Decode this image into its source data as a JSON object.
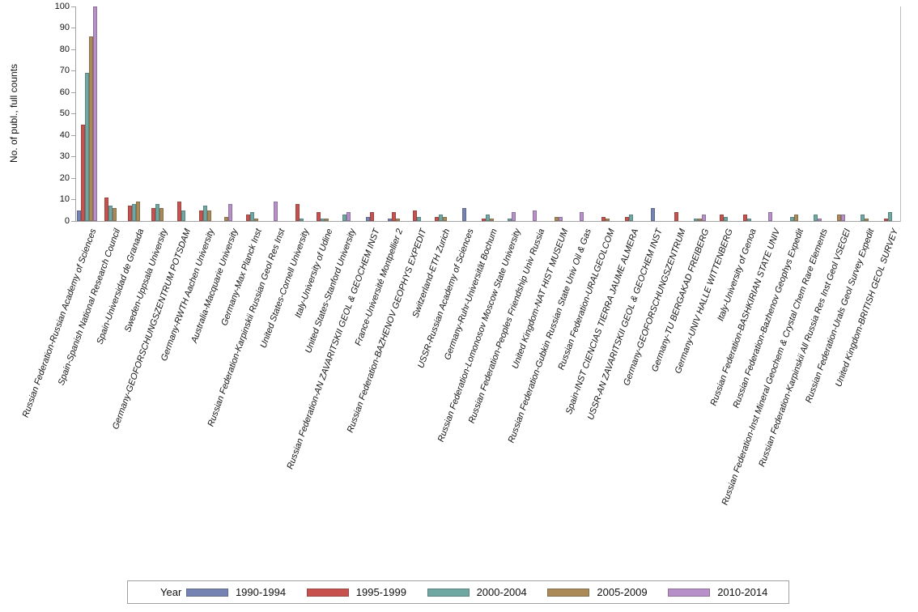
{
  "chart_data": {
    "type": "bar",
    "title": "",
    "xlabel": "",
    "ylabel": "No. of publ., full counts",
    "ylim": [
      0,
      100
    ],
    "yticks": [
      0,
      10,
      20,
      30,
      40,
      50,
      60,
      70,
      80,
      90,
      100
    ],
    "grid": false,
    "legend_title": "Year",
    "legend_position": "bottom",
    "categories": [
      "Russian Federation-Russian Academy of Sciences",
      "Spain-Spanish National Research Council",
      "Spain-Universidad de Granada",
      "Sweden-Uppsala University",
      "Germany-GEOFORSCHUNGSZENTRUM POTSDAM",
      "Germany-RWTH Aachen University",
      "Australia-Macquarie University",
      "Germany-Max Planck Inst",
      "Russian Federation-Karpinskii Russian Geol Res Inst",
      "United States-Cornell University",
      "Italy-University of Udine",
      "United States-Stanford University",
      "Russian Federation-AN ZAVARITSKII GEOL & GEOCHEM INST",
      "France-Université Montpellier 2",
      "Russian Federation-BAZHENOV GEOPHYS EXPEDIT",
      "Switzerland-ETH Zurich",
      "USSR-Russian Academy of Sciences",
      "Germany-Ruhr-Universität Bochum",
      "Russian Federation-Lomonosov Moscow State University",
      "Russian Federation-Peoples Friendship Univ Russia",
      "United Kingdom-NAT HIST MUSEUM",
      "Russian Federation-Gubkin Russian State Univ Oil & Gas",
      "Russian Federation-URALGEOLCOM",
      "Spain-INST CIENCIAS TIERRA JAUME ALMERA",
      "USSR-AN ZAVARITSKII GEOL & GEOCHEM INST",
      "Germany-GEOFORSCHUNGSZENTRUM",
      "Germany-TU BERGAKAD FREIBERG",
      "Germany-UNIV HALLE WITTENBERG",
      "Italy-University of Genoa",
      "Russian Federation-BASHKIRIAN STATE UNIV",
      "Russian Federation-Bazhenov Geophys Expedit",
      "Russian Federation-Inst Mineral Geochem & Crystal Chem Rare Elements",
      "Russian Federation-Karpinskii All Russia Res Inst Geol VSEGEI",
      "Russian Federation-Urals Geol Survey Expedit",
      "United Kingdom-BRITISH GEOL SURVEY"
    ],
    "series": [
      {
        "name": "1990-1994",
        "color": "#7583b3",
        "values": [
          5,
          null,
          null,
          null,
          null,
          null,
          null,
          null,
          null,
          null,
          null,
          null,
          2,
          1,
          null,
          null,
          6,
          null,
          null,
          null,
          null,
          null,
          null,
          null,
          6,
          null,
          null,
          null,
          null,
          null,
          null,
          null,
          null,
          null,
          null
        ]
      },
      {
        "name": "1995-1999",
        "color": "#c6514d",
        "values": [
          45,
          11,
          7,
          6,
          9,
          5,
          null,
          3,
          null,
          8,
          4,
          null,
          4,
          4,
          5,
          2,
          null,
          1,
          null,
          null,
          null,
          null,
          2,
          2,
          null,
          4,
          null,
          3,
          3,
          null,
          null,
          null,
          null,
          null,
          1
        ]
      },
      {
        "name": "2000-2004",
        "color": "#6fa8a3",
        "values": [
          69,
          7,
          8,
          8,
          5,
          7,
          null,
          4,
          null,
          1,
          1,
          3,
          null,
          null,
          2,
          3,
          null,
          3,
          1,
          null,
          null,
          null,
          null,
          3,
          null,
          null,
          1,
          2,
          1,
          null,
          2,
          3,
          null,
          3,
          4
        ]
      },
      {
        "name": "2005-2009",
        "color": "#ab8a58",
        "values": [
          86,
          6,
          9,
          6,
          null,
          5,
          2,
          1,
          null,
          null,
          1,
          null,
          null,
          1,
          null,
          2,
          null,
          1,
          null,
          null,
          2,
          null,
          1,
          null,
          null,
          null,
          1,
          null,
          null,
          null,
          3,
          null,
          3,
          1,
          null
        ]
      },
      {
        "name": "2010-2014",
        "color": "#b78fc9",
        "values": [
          100,
          null,
          null,
          null,
          null,
          null,
          8,
          null,
          9,
          null,
          null,
          4,
          null,
          null,
          null,
          null,
          null,
          null,
          4,
          5,
          2,
          4,
          null,
          null,
          null,
          null,
          3,
          null,
          null,
          4,
          null,
          1,
          3,
          null,
          null
        ]
      }
    ]
  },
  "colors": {
    "axis": "#a3a3a3",
    "plot_right_border": "#bdbdbd",
    "text": "#111111",
    "legend_border": "#a0a0a0",
    "background": "#ffffff"
  }
}
